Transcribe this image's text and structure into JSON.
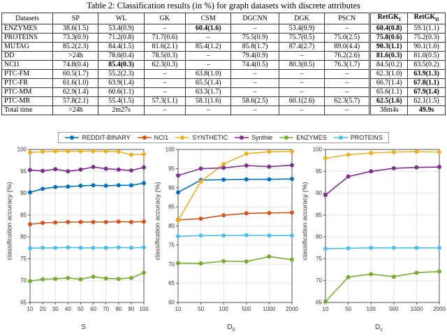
{
  "title": "Table 2: Classification results (in %) for graph datasets with discrete attributes",
  "table": {
    "headers": [
      {
        "label": "Datasets"
      },
      {
        "label": "SP"
      },
      {
        "label": "WL"
      },
      {
        "label": "GK"
      },
      {
        "label": "CSM"
      },
      {
        "label": "DGCNN"
      },
      {
        "label": "DGK"
      },
      {
        "label": "PSCN"
      },
      {
        "label": "RetGK",
        "sub": "I",
        "bold": true
      },
      {
        "label": "RetGK",
        "sub": "II",
        "bold": true
      }
    ],
    "rows": [
      {
        "cells": [
          "ENZYMES",
          "38.6(1.5)",
          "53.4(0.9)",
          "–",
          "60.4(1.6)",
          "–",
          "53.4(0.9)",
          "–",
          "60.4(0.8)",
          "59.1(1.1)"
        ],
        "bold": [
          4,
          8
        ]
      },
      {
        "cells": [
          "PROTEINS",
          "73.3(0.9)",
          "71.2(0.8)",
          "71.7(0.6)",
          "–",
          "75.5(0.9)",
          "75.7(0.5)",
          "75.0(2.5)",
          "75.8(0.6)",
          "75.2(0.3)"
        ],
        "bold": [
          8
        ]
      },
      {
        "cells": [
          "MUTAG",
          "85.2(2.3)",
          "84.4(1.5)",
          "81.6(2.1)",
          "85.4(1.2)",
          "85.8(1.7)",
          "87.4(2.7)",
          "89.0(4.4)",
          "90.3(1.1)",
          "90.1(1.0)"
        ],
        "bold": [
          8
        ]
      },
      {
        "cells": [
          "DD",
          ">24h",
          "78.6(0.4)",
          "78.5(0.3)",
          "–",
          "79.4(0.9)",
          "–",
          "76.2(2.6)",
          "81.6(0.3)",
          "81.0(0.5)"
        ],
        "bold": [
          8
        ]
      },
      {
        "cells": [
          "NCI1",
          "74.8(0.4)",
          "85.4(0.3)",
          "62.3(0.3)",
          "–",
          "74.4(0.5)",
          "80.3(0.5)",
          "76.3(1.7)",
          "84.5(0.2)",
          "83.5(0.2)"
        ],
        "bold": [
          2
        ]
      },
      {
        "cells": [
          "PTC-FM",
          "60.5(1.7)",
          "55.2(2.3)",
          "–",
          "63.8(1.0)",
          "–",
          "–",
          "–",
          "62.3(1.0)",
          "63.9(1.3)"
        ],
        "bold": [
          9
        ]
      },
      {
        "cells": [
          "PTC-FR",
          "61.6(1.0)",
          "63.9(1.4)",
          "–",
          "65.5(1.4)",
          "–",
          "–",
          "–",
          "66.7(1.4)",
          "67.8(1.1)"
        ],
        "bold": [
          9
        ]
      },
      {
        "cells": [
          "PTC-MM",
          "62.9(1.4)",
          "60.6(1.1)",
          "–",
          "63.3(1.7)",
          "–",
          "–",
          "–",
          "65.6(1.1)",
          "67.9(1.4)"
        ],
        "bold": [
          9
        ]
      },
      {
        "cells": [
          "PTC-MR",
          "57.8(2.1)",
          "55.4(1.5)",
          "57.3(1.1)",
          "58.1(1.6)",
          "58.6(2.5)",
          "60.1(2.6)",
          "62.3(5.7)",
          "62.5(1.6)",
          "62.1(1.5)"
        ],
        "bold": [
          8
        ]
      },
      {
        "cells": [
          "Total time",
          ">24h",
          "2m27s",
          "–",
          "–",
          "–",
          "–",
          "–",
          "38m4s",
          "49.9s"
        ],
        "bold": [
          9
        ]
      }
    ]
  },
  "figure": {
    "legend": [
      {
        "label": "REDDIT-BINARY",
        "color": "#0072BD"
      },
      {
        "label": "NCI1",
        "color": "#D95319"
      },
      {
        "label": "SYNTHETIC",
        "color": "#EDB120"
      },
      {
        "label": "Synthie",
        "color": "#7E2F8E"
      },
      {
        "label": "ENZYMES",
        "color": "#77AC30"
      },
      {
        "label": "PROTEINS",
        "color": "#4DBEEE"
      }
    ]
  },
  "chart_data": [
    {
      "type": "line",
      "x": [
        10,
        20,
        30,
        40,
        50,
        60,
        70,
        80,
        90,
        100
      ],
      "xlabel": {
        "base": "S",
        "sub": ""
      },
      "ylabel": "classification accuracy (%)",
      "ylim": [
        65,
        100
      ],
      "ytick": 5,
      "grid": true,
      "legend_position": "top-shared",
      "series": [
        {
          "name": "REDDIT-BINARY",
          "color": "#0072BD",
          "values": [
            90.2,
            91.0,
            91.4,
            91.5,
            91.7,
            91.8,
            91.7,
            91.8,
            91.8,
            92.3
          ]
        },
        {
          "name": "NCI1",
          "color": "#D95319",
          "values": [
            82.9,
            83.2,
            83.3,
            83.4,
            83.4,
            83.4,
            83.4,
            83.5,
            83.4,
            83.5
          ]
        },
        {
          "name": "SYNTHETIC",
          "color": "#EDB120",
          "values": [
            99.3,
            99.5,
            99.6,
            99.6,
            99.6,
            99.6,
            99.6,
            99.5,
            98.8,
            98.9
          ]
        },
        {
          "name": "Synthie",
          "color": "#7E2F8E",
          "values": [
            95.3,
            95.1,
            95.5,
            95.0,
            95.4,
            96.0,
            95.6,
            95.4,
            95.2,
            95.9
          ]
        },
        {
          "name": "ENZYMES",
          "color": "#77AC30",
          "values": [
            69.9,
            70.3,
            70.4,
            70.6,
            70.3,
            70.9,
            70.5,
            70.4,
            70.6,
            71.8
          ]
        },
        {
          "name": "PROTEINS",
          "color": "#4DBEEE",
          "values": [
            77.4,
            77.5,
            77.5,
            77.6,
            77.5,
            77.5,
            77.5,
            77.6,
            77.5,
            77.6
          ]
        }
      ]
    },
    {
      "type": "line",
      "x": [
        10,
        50,
        100,
        500,
        1000,
        2000
      ],
      "xlabel": {
        "base": "D",
        "sub": "0"
      },
      "ylabel": "classification accuracy (%)",
      "ylim": [
        60,
        100
      ],
      "ytick": 5,
      "grid": true,
      "legend_position": "top-shared",
      "series": [
        {
          "name": "REDDIT-BINARY",
          "color": "#0072BD",
          "values": [
            88.8,
            92.0,
            92.1,
            92.2,
            92.2,
            92.3
          ]
        },
        {
          "name": "NCI1",
          "color": "#D95319",
          "values": [
            81.6,
            81.9,
            82.8,
            83.3,
            83.4,
            83.5
          ]
        },
        {
          "name": "SYNTHETIC",
          "color": "#EDB120",
          "values": [
            81.4,
            91.6,
            96.2,
            98.9,
            99.4,
            99.5
          ]
        },
        {
          "name": "Synthie",
          "color": "#7E2F8E",
          "values": [
            93.2,
            95.0,
            95.2,
            95.8,
            95.5,
            95.9
          ]
        },
        {
          "name": "ENZYMES",
          "color": "#77AC30",
          "values": [
            70.3,
            70.2,
            70.8,
            70.7,
            72.0,
            71.2
          ]
        },
        {
          "name": "PROTEINS",
          "color": "#4DBEEE",
          "values": [
            77.3,
            77.5,
            77.5,
            77.6,
            77.5,
            77.5
          ]
        }
      ]
    },
    {
      "type": "line",
      "x": [
        10,
        50,
        100,
        500,
        1000,
        2000
      ],
      "xlabel": {
        "base": "D",
        "sub": "c"
      },
      "ylabel": "classification accuracy (%)",
      "ylim": [
        65,
        100
      ],
      "ytick": 5,
      "grid": true,
      "legend_position": "top-shared",
      "series": [
        {
          "name": "SYNTHETIC",
          "color": "#EDB120",
          "values": [
            98.0,
            98.8,
            99.2,
            99.4,
            99.5,
            99.4
          ]
        },
        {
          "name": "Synthie",
          "color": "#7E2F8E",
          "values": [
            89.6,
            93.8,
            95.0,
            95.7,
            95.9,
            96.0
          ]
        },
        {
          "name": "PROTEINS",
          "color": "#4DBEEE",
          "values": [
            77.3,
            77.4,
            77.5,
            77.5,
            77.5,
            77.5
          ]
        },
        {
          "name": "ENZYMES",
          "color": "#77AC30",
          "values": [
            65.2,
            70.8,
            71.5,
            70.9,
            71.8,
            72.1
          ]
        }
      ]
    }
  ]
}
